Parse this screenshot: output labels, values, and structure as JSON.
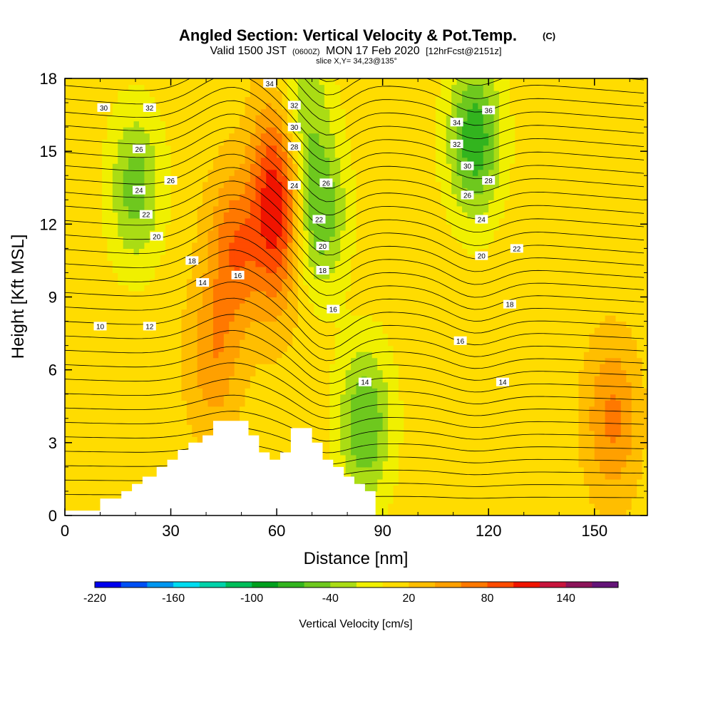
{
  "chart_data": {
    "type": "heatmap",
    "title": "Angled Section: Vertical Velocity & Pot.Temp.",
    "title_unit": "(C)",
    "subtitle": {
      "valid_prefix": "Valid 1500 JST",
      "utc": "(0600Z)",
      "date": "MON 17 Feb 2020",
      "forecast": "[12hrFcst@2151z]"
    },
    "slice_label": "slice X,Y= 34,23@135°",
    "xlabel": "Distance [nm]",
    "ylabel": "Height [Kft MSL]",
    "xlim": [
      0,
      165
    ],
    "ylim": [
      0,
      18
    ],
    "x_ticks": [
      "0",
      "30",
      "60",
      "90",
      "120",
      "150"
    ],
    "y_ticks": [
      "0",
      "3",
      "6",
      "9",
      "12",
      "15",
      "18"
    ],
    "colorbar": {
      "label": "Vertical Velocity [cm/s]",
      "levels_min": -220,
      "levels_step": 20,
      "tick_labels": [
        "-220",
        "-160",
        "-100",
        "-40",
        "20",
        "80",
        "140"
      ],
      "colors": [
        "#0000ee",
        "#0050f5",
        "#0096f0",
        "#00dcf0",
        "#00d2aa",
        "#00be5a",
        "#00a01e",
        "#32b41e",
        "#6ec81e",
        "#aadc14",
        "#f0f000",
        "#ffdc00",
        "#ffbe00",
        "#ffa000",
        "#ff7800",
        "#ff4b00",
        "#f01400",
        "#c8143c",
        "#8c145a",
        "#641478"
      ]
    },
    "velocity_features": [
      {
        "x": 60,
        "y": 13,
        "value": 110,
        "kind": "updraft core"
      },
      {
        "x": 48,
        "y": 11,
        "value": 65,
        "kind": "updraft"
      },
      {
        "x": 20,
        "y": 13.5,
        "value": -60,
        "kind": "downdraft"
      },
      {
        "x": 72,
        "y": 12.5,
        "value": -70,
        "kind": "downdraft"
      },
      {
        "x": 85,
        "y": 3.8,
        "value": -70,
        "kind": "downdraft"
      },
      {
        "x": 116,
        "y": 15.5,
        "value": -85,
        "kind": "downdraft"
      },
      {
        "x": 155,
        "y": 4,
        "value": 55,
        "kind": "updraft"
      },
      {
        "x": 42,
        "y": 6.5,
        "value": 45,
        "kind": "updraft"
      },
      {
        "x": 67,
        "y": 17,
        "value": -50,
        "kind": "downdraft"
      }
    ],
    "terrain": [
      [
        0,
        0
      ],
      [
        10,
        0
      ],
      [
        10,
        0.7
      ],
      [
        16,
        0.7
      ],
      [
        16,
        1
      ],
      [
        19,
        1
      ],
      [
        19,
        1.3
      ],
      [
        22,
        1.3
      ],
      [
        22,
        1.6
      ],
      [
        26,
        1.6
      ],
      [
        26,
        2
      ],
      [
        29,
        2
      ],
      [
        29,
        2.3
      ],
      [
        32,
        2.3
      ],
      [
        32,
        2.7
      ],
      [
        35,
        2.7
      ],
      [
        35,
        3
      ],
      [
        39,
        3
      ],
      [
        39,
        3.3
      ],
      [
        42,
        3.3
      ],
      [
        42,
        3.9
      ],
      [
        52,
        3.9
      ],
      [
        52,
        3.3
      ],
      [
        55,
        3.3
      ],
      [
        55,
        2.6
      ],
      [
        58,
        2.6
      ],
      [
        58,
        2.3
      ],
      [
        61,
        2.3
      ],
      [
        61,
        2.6
      ],
      [
        64,
        2.6
      ],
      [
        64,
        3.6
      ],
      [
        70,
        3.6
      ],
      [
        70,
        3
      ],
      [
        73,
        3
      ],
      [
        73,
        2.3
      ],
      [
        76,
        2.3
      ],
      [
        76,
        2
      ],
      [
        79,
        2
      ],
      [
        79,
        1.6
      ],
      [
        82,
        1.6
      ],
      [
        82,
        1.3
      ],
      [
        85,
        1.3
      ],
      [
        85,
        1
      ],
      [
        88,
        1
      ],
      [
        88,
        0
      ],
      [
        165,
        0
      ]
    ],
    "contour_labels": [
      {
        "text": "34",
        "x": 58,
        "y": 17.8
      },
      {
        "text": "32",
        "x": 24,
        "y": 16.8
      },
      {
        "text": "30",
        "x": 11,
        "y": 16.8
      },
      {
        "text": "32",
        "x": 65,
        "y": 16.9
      },
      {
        "text": "30",
        "x": 65,
        "y": 16.0
      },
      {
        "text": "28",
        "x": 65,
        "y": 15.2
      },
      {
        "text": "26",
        "x": 21,
        "y": 15.1
      },
      {
        "text": "26",
        "x": 30,
        "y": 13.8
      },
      {
        "text": "24",
        "x": 21,
        "y": 13.4
      },
      {
        "text": "24",
        "x": 65,
        "y": 13.6
      },
      {
        "text": "26",
        "x": 74,
        "y": 13.7
      },
      {
        "text": "22",
        "x": 23,
        "y": 12.4
      },
      {
        "text": "22",
        "x": 72,
        "y": 12.2
      },
      {
        "text": "20",
        "x": 26,
        "y": 11.5
      },
      {
        "text": "20",
        "x": 73,
        "y": 11.1
      },
      {
        "text": "18",
        "x": 36,
        "y": 10.5
      },
      {
        "text": "18",
        "x": 73,
        "y": 10.1
      },
      {
        "text": "16",
        "x": 49,
        "y": 9.9
      },
      {
        "text": "16",
        "x": 76,
        "y": 8.5
      },
      {
        "text": "14",
        "x": 39,
        "y": 9.6
      },
      {
        "text": "14",
        "x": 85,
        "y": 5.5
      },
      {
        "text": "12",
        "x": 24,
        "y": 7.8
      },
      {
        "text": "10",
        "x": 10,
        "y": 7.8
      },
      {
        "text": "36",
        "x": 120,
        "y": 16.7
      },
      {
        "text": "34",
        "x": 111,
        "y": 16.2
      },
      {
        "text": "32",
        "x": 111,
        "y": 15.3
      },
      {
        "text": "30",
        "x": 114,
        "y": 14.4
      },
      {
        "text": "28",
        "x": 120,
        "y": 13.8
      },
      {
        "text": "26",
        "x": 114,
        "y": 13.2
      },
      {
        "text": "24",
        "x": 118,
        "y": 12.2
      },
      {
        "text": "22",
        "x": 128,
        "y": 11.0
      },
      {
        "text": "20",
        "x": 118,
        "y": 10.7
      },
      {
        "text": "18",
        "x": 126,
        "y": 8.7
      },
      {
        "text": "16",
        "x": 112,
        "y": 7.2
      },
      {
        "text": "14",
        "x": 124,
        "y": 5.5
      }
    ]
  }
}
